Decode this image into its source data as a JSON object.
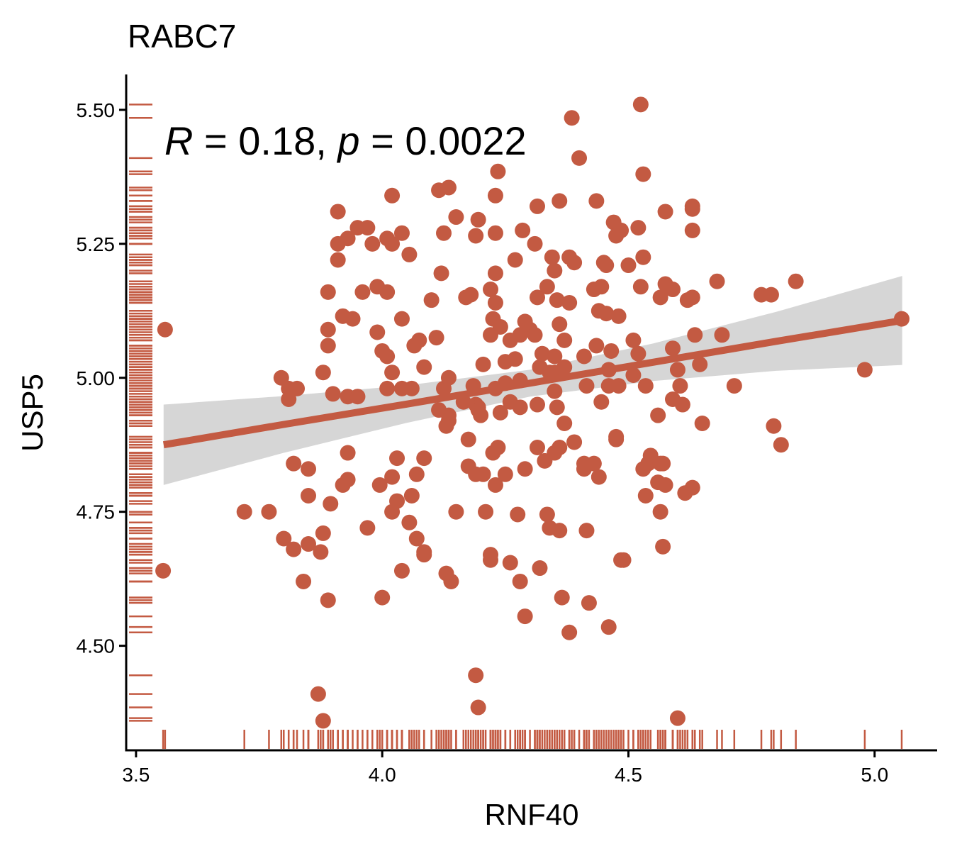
{
  "chart_data": {
    "type": "scatter",
    "title": "RABC7",
    "x_label": "RNF40",
    "y_label": "USP5",
    "annotation": [
      "R",
      " = 0.18, ",
      "p",
      " = 0.0022"
    ],
    "color": "#c35a42",
    "fit_color": "#c35a42",
    "band_color": "#d6d6d6",
    "xlim": [
      3.48,
      5.127
    ],
    "ylim": [
      4.305,
      5.566
    ],
    "xticks": [
      {
        "value": 3.5,
        "label": "3.5"
      },
      {
        "value": 4,
        "label": "4.0"
      },
      {
        "value": 4.5,
        "label": "4.5"
      },
      {
        "value": 5,
        "label": "5.0"
      }
    ],
    "yticks": [
      {
        "value": 4.5,
        "label": "4.50"
      },
      {
        "value": 4.75,
        "label": "4.75"
      },
      {
        "value": 5,
        "label": "5.00"
      },
      {
        "value": 5.25,
        "label": "5.25"
      },
      {
        "value": 5.5,
        "label": "5.50"
      }
    ],
    "x": [
      3.559,
      3.555,
      3.72,
      3.77,
      3.795,
      3.81,
      3.827,
      3.81,
      3.8,
      3.82,
      3.85,
      3.82,
      3.85,
      3.85,
      3.84,
      3.87,
      3.88,
      3.88,
      3.88,
      3.875,
      3.89,
      3.895,
      3.89,
      3.89,
      3.89,
      3.9,
      3.91,
      3.91,
      3.91,
      3.93,
      3.92,
      3.94,
      3.93,
      3.95,
      3.93,
      3.92,
      3.93,
      3.95,
      3.97,
      3.98,
      3.96,
      3.97,
      3.99,
      3.99,
      3.995,
      4.0,
      4.01,
      4.01,
      4.01,
      4.0,
      4.01,
      4.02,
      4.02,
      4.02,
      4.03,
      4.02,
      4.02,
      4.03,
      4.04,
      4.04,
      4.04,
      4.055,
      4.04,
      4.055,
      4.06,
      4.06,
      4.065,
      4.07,
      4.075,
      4.07,
      4.085,
      4.085,
      4.085,
      4.085,
      4.1,
      4.11,
      4.115,
      4.12,
      4.125,
      4.135,
      4.125,
      4.135,
      4.115,
      4.135,
      4.135,
      4.13,
      4.13,
      4.14,
      4.15,
      4.15,
      4.17,
      4.18,
      4.165,
      4.175,
      4.175,
      4.185,
      4.19,
      4.195,
      4.19,
      4.195,
      4.195,
      4.2,
      4.19,
      4.205,
      4.19,
      4.195,
      4.205,
      4.21,
      4.22,
      4.22,
      4.22,
      4.22,
      4.225,
      4.23,
      4.23,
      4.23,
      4.23,
      4.235,
      4.23,
      4.225,
      4.235,
      4.23,
      4.24,
      4.24,
      4.25,
      4.25,
      4.25,
      4.26,
      4.26,
      4.26,
      4.27,
      4.27,
      4.275,
      4.28,
      4.28,
      4.28,
      4.28,
      4.285,
      4.29,
      4.29,
      4.29,
      4.3,
      4.31,
      4.31,
      4.315,
      4.315,
      4.315,
      4.315,
      4.32,
      4.33,
      4.32,
      4.325,
      4.335,
      4.335,
      4.34,
      4.34,
      4.35,
      4.345,
      4.35,
      4.35,
      4.35,
      4.35,
      4.355,
      4.36,
      4.355,
      4.36,
      4.36,
      4.36,
      4.365,
      4.37,
      4.37,
      4.37,
      4.38,
      4.38,
      4.38,
      4.385,
      4.39,
      4.39,
      4.4,
      4.41,
      4.41,
      4.41,
      4.415,
      4.415,
      4.42,
      4.43,
      4.43,
      4.435,
      4.44,
      4.435,
      4.44,
      4.445,
      4.445,
      4.45,
      4.455,
      4.455,
      4.46,
      4.46,
      4.46,
      4.465,
      4.47,
      4.475,
      4.48,
      4.48,
      4.475,
      4.475,
      4.485,
      4.485,
      4.49,
      4.5,
      4.51,
      4.51,
      4.525,
      4.52,
      4.525,
      4.52,
      4.53,
      4.53,
      4.53,
      4.535,
      4.535,
      4.54,
      4.545,
      4.56,
      4.56,
      4.565,
      4.565,
      4.565,
      4.57,
      4.57,
      4.575,
      4.575,
      4.575,
      4.59,
      4.59,
      4.59,
      4.6,
      4.605,
      4.61,
      4.6,
      4.615,
      4.62,
      4.63,
      4.63,
      4.63,
      4.63,
      4.63,
      4.635,
      4.645,
      4.65,
      4.68,
      4.69,
      4.715,
      4.77,
      4.79,
      4.795,
      4.81,
      4.84,
      4.98,
      5.055
    ],
    "y": [
      5.09,
      4.64,
      4.75,
      4.75,
      5.0,
      4.98,
      4.98,
      4.96,
      4.7,
      4.84,
      4.83,
      4.68,
      4.69,
      4.78,
      4.62,
      4.41,
      4.36,
      5.01,
      4.71,
      4.675,
      4.585,
      4.765,
      5.09,
      5.06,
      5.16,
      4.97,
      5.22,
      5.31,
      5.25,
      5.26,
      5.115,
      5.11,
      4.965,
      4.965,
      4.86,
      4.8,
      4.81,
      5.28,
      5.28,
      5.25,
      5.16,
      4.72,
      5.085,
      5.17,
      4.8,
      5.05,
      5.26,
      5.16,
      4.98,
      4.59,
      5.04,
      5.34,
      5.01,
      5.25,
      4.85,
      4.815,
      4.75,
      4.77,
      5.27,
      5.11,
      4.98,
      5.23,
      4.64,
      4.73,
      4.98,
      4.78,
      5.06,
      4.82,
      5.07,
      4.7,
      5.02,
      4.675,
      4.67,
      4.85,
      5.145,
      5.075,
      5.35,
      5.195,
      5.27,
      5.355,
      4.98,
      5.0,
      4.94,
      4.93,
      4.92,
      4.91,
      4.635,
      4.62,
      4.75,
      5.3,
      5.15,
      5.155,
      4.955,
      4.885,
      4.835,
      4.985,
      5.265,
      5.295,
      4.95,
      4.945,
      4.94,
      4.93,
      4.82,
      4.82,
      4.445,
      4.385,
      5.025,
      4.75,
      5.165,
      4.67,
      4.66,
      5.08,
      5.11,
      5.195,
      5.14,
      5.27,
      5.34,
      5.385,
      4.98,
      4.86,
      4.87,
      4.8,
      4.935,
      5.095,
      4.82,
      4.99,
      5.03,
      5.07,
      4.655,
      4.955,
      5.035,
      5.22,
      4.745,
      4.995,
      4.945,
      5.08,
      4.62,
      5.275,
      5.105,
      4.83,
      4.555,
      5.09,
      5.08,
      5.25,
      5.32,
      5.15,
      4.95,
      4.87,
      4.645,
      4.845,
      5.02,
      5.045,
      5.17,
      4.745,
      4.72,
      5.01,
      5.01,
      5.225,
      5.2,
      5.04,
      4.975,
      4.86,
      4.945,
      5.33,
      5.145,
      5.1,
      4.87,
      4.715,
      4.59,
      5.07,
      4.915,
      5.02,
      4.525,
      5.225,
      5.14,
      5.485,
      5.215,
      4.88,
      5.41,
      5.04,
      4.84,
      4.83,
      4.715,
      4.985,
      4.58,
      5.165,
      4.84,
      5.33,
      4.815,
      5.06,
      5.125,
      5.17,
      4.955,
      5.215,
      5.21,
      5.12,
      4.535,
      4.985,
      5.015,
      5.05,
      5.29,
      5.265,
      5.115,
      4.985,
      4.89,
      4.885,
      5.275,
      4.66,
      4.66,
      5.21,
      5.07,
      5.005,
      5.51,
      5.28,
      5.17,
      5.045,
      4.83,
      5.225,
      5.38,
      4.78,
      4.985,
      4.84,
      4.855,
      4.805,
      4.93,
      5.15,
      4.84,
      4.75,
      4.84,
      4.685,
      5.31,
      4.8,
      5.175,
      4.96,
      5.165,
      5.055,
      5.015,
      4.985,
      4.95,
      4.365,
      4.785,
      5.145,
      5.15,
      5.275,
      5.315,
      5.32,
      4.795,
      5.08,
      5.025,
      4.915,
      5.18,
      5.08,
      4.985,
      5.155,
      5.155,
      4.91,
      4.875,
      5.18,
      5.015,
      5.11
    ],
    "fit": {
      "x": [
        3.556,
        3.8,
        4.05,
        4.3,
        4.55,
        4.8,
        5.056
      ],
      "y": [
        4.875,
        4.913,
        4.951,
        4.99,
        5.029,
        5.068,
        5.107
      ],
      "lower": [
        4.8,
        4.86,
        4.916,
        4.965,
        4.994,
        5.013,
        5.024
      ],
      "upper": [
        4.95,
        4.966,
        4.986,
        5.015,
        5.064,
        5.123,
        5.19
      ]
    }
  }
}
